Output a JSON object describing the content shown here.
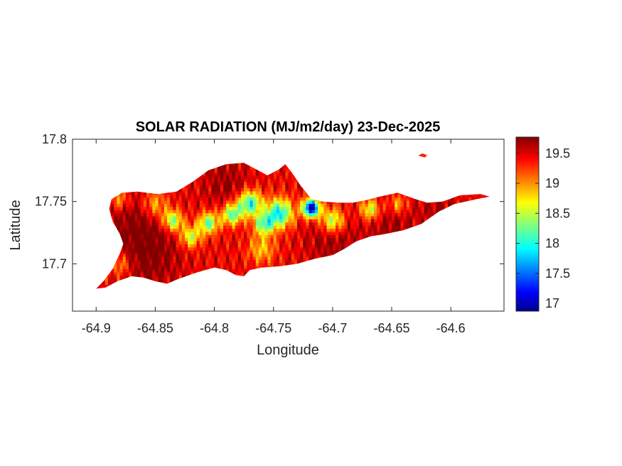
{
  "chart_data": {
    "type": "heatmap",
    "title": "SOLAR RADIATION (MJ/m2/day) 23-Dec-2025",
    "xlabel": "Longitude",
    "ylabel": "Latitude",
    "xlim": [
      -64.92,
      -64.555
    ],
    "ylim": [
      17.662,
      17.8
    ],
    "xticks": [
      -64.9,
      -64.85,
      -64.8,
      -64.75,
      -64.7,
      -64.65,
      -64.6
    ],
    "xtick_labels": [
      "-64.9",
      "-64.85",
      "-64.8",
      "-64.75",
      "-64.7",
      "-64.65",
      "-64.6"
    ],
    "yticks": [
      17.7,
      17.75,
      17.8
    ],
    "ytick_labels": [
      "17.7",
      "17.75",
      "17.8"
    ],
    "colorbar": {
      "min": 16.87,
      "max": 19.77,
      "ticks": [
        17,
        17.5,
        18,
        18.5,
        19,
        19.5
      ],
      "tick_labels": [
        "17",
        "17.5",
        "18",
        "18.5",
        "19",
        "19.5"
      ],
      "colormap": "jet"
    },
    "grid": false,
    "land_outline": [
      [
        -64.9,
        17.68
      ],
      [
        -64.893,
        17.687
      ],
      [
        -64.886,
        17.696
      ],
      [
        -64.88,
        17.708
      ],
      [
        -64.877,
        17.716
      ],
      [
        -64.88,
        17.724
      ],
      [
        -64.886,
        17.734
      ],
      [
        -64.889,
        17.744
      ],
      [
        -64.887,
        17.752
      ],
      [
        -64.878,
        17.757
      ],
      [
        -64.865,
        17.758
      ],
      [
        -64.848,
        17.756
      ],
      [
        -64.832,
        17.758
      ],
      [
        -64.818,
        17.766
      ],
      [
        -64.805,
        17.775
      ],
      [
        -64.79,
        17.78
      ],
      [
        -64.775,
        17.781
      ],
      [
        -64.765,
        17.776
      ],
      [
        -64.755,
        17.771
      ],
      [
        -64.745,
        17.776
      ],
      [
        -64.74,
        17.78
      ],
      [
        -64.735,
        17.774
      ],
      [
        -64.728,
        17.764
      ],
      [
        -64.718,
        17.752
      ],
      [
        -64.708,
        17.75
      ],
      [
        -64.695,
        17.749
      ],
      [
        -64.683,
        17.749
      ],
      [
        -64.672,
        17.751
      ],
      [
        -64.66,
        17.754
      ],
      [
        -64.645,
        17.757
      ],
      [
        -64.63,
        17.752
      ],
      [
        -64.62,
        17.749
      ],
      [
        -64.607,
        17.75
      ],
      [
        -64.592,
        17.755
      ],
      [
        -64.575,
        17.756
      ],
      [
        -64.567,
        17.754
      ],
      [
        -64.578,
        17.752
      ],
      [
        -64.597,
        17.748
      ],
      [
        -64.61,
        17.742
      ],
      [
        -64.625,
        17.732
      ],
      [
        -64.64,
        17.727
      ],
      [
        -64.655,
        17.724
      ],
      [
        -64.668,
        17.722
      ],
      [
        -64.68,
        17.718
      ],
      [
        -64.69,
        17.712
      ],
      [
        -64.7,
        17.707
      ],
      [
        -64.715,
        17.704
      ],
      [
        -64.73,
        17.7
      ],
      [
        -64.745,
        17.698
      ],
      [
        -64.76,
        17.697
      ],
      [
        -64.77,
        17.695
      ],
      [
        -64.775,
        17.69
      ],
      [
        -64.782,
        17.691
      ],
      [
        -64.79,
        17.695
      ],
      [
        -64.8,
        17.697
      ],
      [
        -64.815,
        17.693
      ],
      [
        -64.83,
        17.688
      ],
      [
        -64.84,
        17.684
      ],
      [
        -64.85,
        17.686
      ],
      [
        -64.86,
        17.689
      ],
      [
        -64.87,
        17.69
      ],
      [
        -64.882,
        17.686
      ],
      [
        -64.892,
        17.681
      ],
      [
        -64.9,
        17.68
      ]
    ],
    "islet": [
      [
        -64.626,
        17.787
      ],
      [
        -64.622,
        17.786
      ],
      [
        -64.621,
        17.787
      ],
      [
        -64.624,
        17.788
      ],
      [
        -64.626,
        17.787
      ]
    ],
    "field_base": 19.45,
    "hotspots": [
      {
        "lon": -64.865,
        "lat": 17.735,
        "value": 19.75,
        "radius": 0.02
      },
      {
        "lon": -64.855,
        "lat": 17.705,
        "value": 19.75,
        "radius": 0.018
      },
      {
        "lon": -64.79,
        "lat": 17.765,
        "value": 19.7,
        "radius": 0.014
      },
      {
        "lon": -64.7,
        "lat": 17.72,
        "value": 19.72,
        "radius": 0.015
      },
      {
        "lon": -64.65,
        "lat": 17.735,
        "value": 19.7,
        "radius": 0.016
      },
      {
        "lon": -64.61,
        "lat": 17.746,
        "value": 19.65,
        "radius": 0.01
      },
      {
        "lon": -64.718,
        "lat": 17.745,
        "value": 16.95,
        "radius": 0.005
      },
      {
        "lon": -64.745,
        "lat": 17.741,
        "value": 17.95,
        "radius": 0.008
      },
      {
        "lon": -64.77,
        "lat": 17.749,
        "value": 18.0,
        "radius": 0.007
      },
      {
        "lon": -64.785,
        "lat": 17.74,
        "value": 18.2,
        "radius": 0.006
      },
      {
        "lon": -64.805,
        "lat": 17.733,
        "value": 18.25,
        "radius": 0.006
      },
      {
        "lon": -64.835,
        "lat": 17.735,
        "value": 18.3,
        "radius": 0.006
      },
      {
        "lon": -64.82,
        "lat": 17.722,
        "value": 18.5,
        "radius": 0.006
      },
      {
        "lon": -64.7,
        "lat": 17.735,
        "value": 18.4,
        "radius": 0.007
      },
      {
        "lon": -64.668,
        "lat": 17.744,
        "value": 18.5,
        "radius": 0.006
      },
      {
        "lon": -64.758,
        "lat": 17.732,
        "value": 18.3,
        "radius": 0.006
      },
      {
        "lon": -64.85,
        "lat": 17.748,
        "value": 18.8,
        "radius": 0.008
      },
      {
        "lon": -64.88,
        "lat": 17.752,
        "value": 18.9,
        "radius": 0.006
      },
      {
        "lon": -64.76,
        "lat": 17.712,
        "value": 18.85,
        "radius": 0.008
      },
      {
        "lon": -64.645,
        "lat": 17.748,
        "value": 18.85,
        "radius": 0.006
      },
      {
        "lon": -64.88,
        "lat": 17.7,
        "value": 18.95,
        "radius": 0.007
      }
    ]
  }
}
